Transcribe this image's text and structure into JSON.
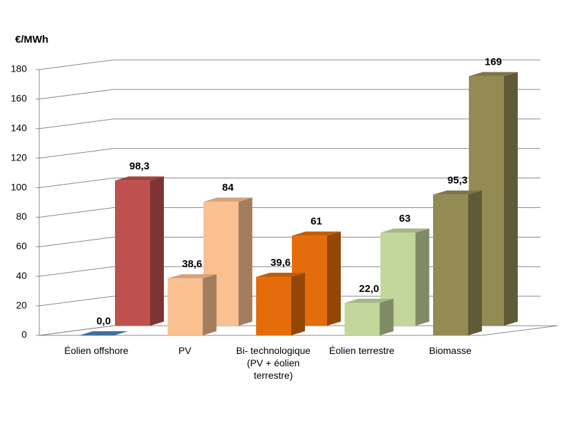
{
  "chart_data": {
    "type": "bar3d",
    "y_label": "€/MWh",
    "categories": [
      "Éolien offshore",
      "PV",
      "Bi- technologique\n(PV + éolien\nterrestre)",
      "Éolien terrestre",
      "Biomasse"
    ],
    "series": [
      {
        "values": [
          0.0,
          38.6,
          39.6,
          22.0,
          95.3
        ],
        "value_labels": [
          "0,0",
          "38,6",
          "39,6",
          "22,0",
          "95,3"
        ],
        "colors": [
          "#4f81bd",
          "#fac090",
          "#e46c0a",
          "#c3d69b",
          "#948a54"
        ]
      },
      {
        "values": [
          98.3,
          84,
          61,
          63,
          169
        ],
        "value_labels": [
          "98,3",
          "84",
          "61",
          "63",
          "169"
        ],
        "colors": [
          "#c0504d",
          "#fac090",
          "#e46c0a",
          "#c3d69b",
          "#948a54"
        ]
      }
    ],
    "ylim": [
      0,
      180
    ],
    "yticks": [
      0,
      20,
      40,
      60,
      80,
      100,
      120,
      140,
      160,
      180
    ],
    "grid": true
  }
}
